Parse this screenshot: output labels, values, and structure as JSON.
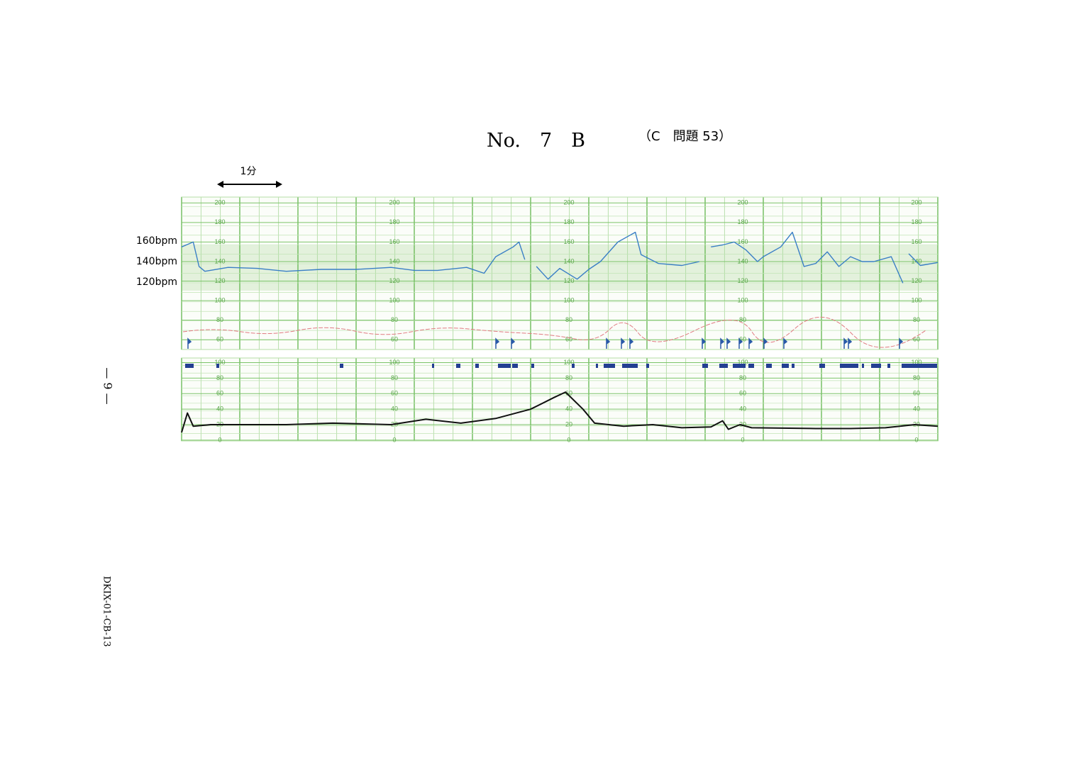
{
  "header": {
    "title": "No.　7　B",
    "question": "（C　問題 53）"
  },
  "scale_label": "1分",
  "page_number": "— 9 —",
  "code": "DKIX-01-CB-13",
  "bpm_labels": [
    "160bpm",
    "140bpm",
    "120bpm"
  ],
  "chart_data": [
    {
      "type": "line",
      "xlim": [
        0,
        13
      ],
      "ylim": [
        50,
        206
      ],
      "yticks": [
        200,
        180,
        160,
        140,
        120,
        100,
        80,
        60
      ],
      "grid": true,
      "series": [
        {
          "color": "#3a7fc6",
          "x": [
            0,
            0.2,
            0.3,
            0.4,
            0.8,
            1.3,
            1.8,
            2.4,
            3.0,
            3.6,
            4.0,
            4.4,
            4.9,
            5.2,
            5.4,
            5.7,
            5.8,
            5.9,
            6.0,
            6.1,
            6.3,
            6.5,
            6.8,
            7.0,
            7.2,
            7.5,
            7.8,
            7.9,
            8.2,
            8.6,
            8.9,
            9.0,
            9.1,
            9.3,
            9.5,
            9.7,
            9.9,
            10.0,
            10.3,
            10.5,
            10.7,
            10.9,
            11.1,
            11.3,
            11.5,
            11.7,
            11.9,
            12.2,
            12.4,
            12.45,
            12.5,
            12.7,
            13.0
          ],
          "values": [
            155,
            160,
            135,
            130,
            134,
            133,
            130,
            132,
            132,
            134,
            131,
            131,
            134,
            128,
            145,
            155,
            160,
            142,
            null,
            135,
            122,
            133,
            122,
            132,
            140,
            160,
            170,
            147,
            138,
            136,
            140,
            null,
            155,
            157,
            160,
            152,
            140,
            145,
            155,
            170,
            135,
            138,
            150,
            135,
            145,
            140,
            140,
            145,
            118,
            null,
            148,
            136,
            139
          ]
        }
      ]
    },
    {
      "type": "line",
      "xlim": [
        0,
        13
      ],
      "ylim": [
        -1,
        106
      ],
      "yticks": [
        100,
        80,
        60,
        40,
        20,
        0
      ],
      "grid": true,
      "series": [
        {
          "color": "#111111",
          "x": [
            0,
            0.1,
            0.2,
            0.5,
            1.8,
            2.6,
            3.6,
            4.2,
            4.8,
            5.4,
            6.0,
            6.4,
            6.6,
            6.9,
            7.1,
            7.6,
            8.1,
            8.6,
            9.1,
            9.3,
            9.4,
            9.6,
            9.8,
            10.9,
            11.5,
            12.1,
            12.6,
            13.0
          ],
          "values": [
            10,
            35,
            18,
            20,
            20,
            22,
            20,
            27,
            22,
            28,
            40,
            55,
            62,
            40,
            22,
            18,
            20,
            16,
            17,
            25,
            14,
            20,
            16,
            15,
            15,
            16,
            20,
            18
          ]
        }
      ]
    }
  ]
}
